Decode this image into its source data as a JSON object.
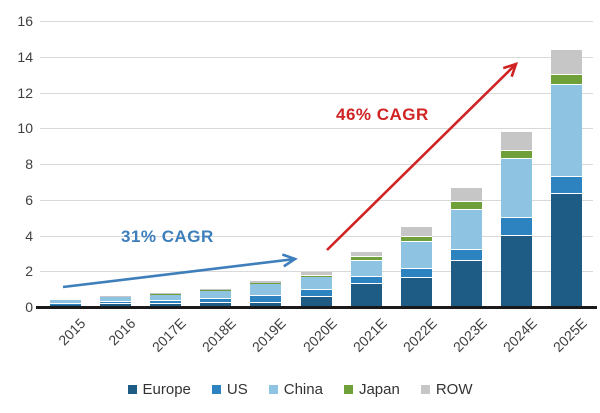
{
  "chart_data": {
    "type": "bar",
    "variant": "stacked",
    "title": "",
    "categories": [
      "2015",
      "2016",
      "2017E",
      "2018E",
      "2019E",
      "2020E",
      "2021E",
      "2022E",
      "2023E",
      "2024E",
      "2025E"
    ],
    "series": [
      {
        "name": "Europe",
        "color": "#1f5c85",
        "values": [
          0.1,
          0.15,
          0.18,
          0.2,
          0.25,
          0.55,
          1.3,
          1.6,
          2.6,
          4.0,
          6.3
        ]
      },
      {
        "name": "US",
        "color": "#2d83bf",
        "values": [
          0.07,
          0.15,
          0.17,
          0.24,
          0.35,
          0.38,
          0.4,
          0.55,
          0.6,
          1.0,
          1.0
        ]
      },
      {
        "name": "China",
        "color": "#8fc3e2",
        "values": [
          0.2,
          0.3,
          0.38,
          0.5,
          0.72,
          0.75,
          0.9,
          1.5,
          2.25,
          3.3,
          5.1
        ]
      },
      {
        "name": "Japan",
        "color": "#6fa03a",
        "values": [
          0.0,
          0.02,
          0.02,
          0.02,
          0.03,
          0.05,
          0.2,
          0.28,
          0.4,
          0.4,
          0.6
        ]
      },
      {
        "name": "ROW",
        "color": "#c6c6c6",
        "values": [
          0.0,
          0.02,
          0.03,
          0.04,
          0.1,
          0.25,
          0.28,
          0.55,
          0.8,
          1.1,
          1.4
        ]
      }
    ],
    "totals": [
      0.37,
      0.64,
      0.78,
      1.0,
      1.45,
      1.98,
      3.08,
      4.48,
      6.65,
      9.8,
      14.4
    ],
    "y_axis": {
      "min": 0,
      "max": 16,
      "step": 2,
      "tick_labels": [
        "0",
        "2",
        "4",
        "6",
        "8",
        "10",
        "12",
        "14",
        "16"
      ]
    },
    "x_axis": {
      "label_rotation_deg": -45
    },
    "grid": true,
    "legend_position": "bottom",
    "annotations": [
      {
        "text": "31% CAGR",
        "color": "#3d7ebb",
        "arrow": "blue"
      },
      {
        "text": "46% CAGR",
        "color": "#d02424",
        "arrow": "red"
      }
    ]
  }
}
